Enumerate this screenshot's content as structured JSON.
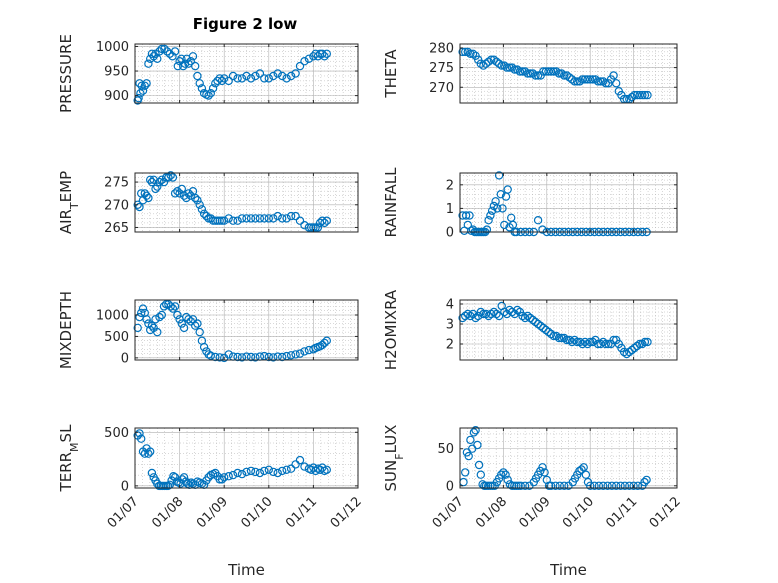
{
  "figure": {
    "title": "Figure 2 low"
  },
  "colors": {
    "marker": "#0072BD",
    "axis": "#262626",
    "grid": "#b0b0b0",
    "background": "#ffffff"
  },
  "chart_data": [
    {
      "type": "scatter",
      "ylabel": "PRESSURE",
      "title": "Figure 2 low",
      "xlabel": "",
      "ylim": [
        885,
        1005
      ],
      "yticks": [
        900,
        950,
        1000
      ],
      "yticklabels": [
        "900",
        "950",
        "1000"
      ],
      "xlim": [
        0,
        5
      ],
      "xticklabels": [],
      "grid": true,
      "x": [
        0.06,
        0.08,
        0.1,
        0.12,
        0.15,
        0.18,
        0.22,
        0.26,
        0.3,
        0.34,
        0.38,
        0.42,
        0.46,
        0.5,
        0.55,
        0.6,
        0.66,
        0.72,
        0.78,
        0.84,
        0.9,
        0.96,
        1.0,
        1.04,
        1.08,
        1.12,
        1.16,
        1.2,
        1.25,
        1.3,
        1.35,
        1.4,
        1.45,
        1.5,
        1.55,
        1.6,
        1.65,
        1.7,
        1.75,
        1.8,
        1.85,
        1.9,
        1.95,
        2.0,
        2.1,
        2.2,
        2.3,
        2.4,
        2.5,
        2.6,
        2.7,
        2.8,
        2.9,
        3.0,
        3.1,
        3.2,
        3.3,
        3.4,
        3.5,
        3.6,
        3.7,
        3.8,
        3.9,
        4.0,
        4.05,
        4.1,
        4.15,
        4.2,
        4.25,
        4.3
      ],
      "y": [
        890,
        895,
        925,
        905,
        920,
        910,
        920,
        925,
        965,
        975,
        985,
        980,
        985,
        975,
        990,
        995,
        995,
        990,
        985,
        980,
        990,
        960,
        970,
        975,
        960,
        965,
        975,
        965,
        970,
        980,
        960,
        940,
        925,
        915,
        905,
        902,
        900,
        905,
        915,
        925,
        930,
        935,
        930,
        935,
        930,
        940,
        935,
        935,
        940,
        935,
        940,
        945,
        935,
        935,
        940,
        945,
        940,
        935,
        940,
        945,
        960,
        970,
        975,
        980,
        985,
        980,
        985,
        985,
        980,
        985
      ]
    },
    {
      "type": "scatter",
      "ylabel": "THETA",
      "xlabel": "",
      "ylim": [
        266,
        281
      ],
      "yticks": [
        270,
        275,
        280
      ],
      "yticklabels": [
        "270",
        "275",
        "280"
      ],
      "xlim": [
        0,
        5
      ],
      "xticklabels": [],
      "grid": true,
      "x": [
        0.06,
        0.12,
        0.18,
        0.24,
        0.3,
        0.36,
        0.42,
        0.48,
        0.54,
        0.6,
        0.66,
        0.72,
        0.78,
        0.84,
        0.9,
        0.96,
        1.02,
        1.08,
        1.14,
        1.2,
        1.26,
        1.32,
        1.38,
        1.44,
        1.5,
        1.56,
        1.62,
        1.68,
        1.74,
        1.8,
        1.86,
        1.92,
        1.98,
        2.04,
        2.1,
        2.16,
        2.22,
        2.28,
        2.34,
        2.4,
        2.46,
        2.52,
        2.58,
        2.64,
        2.7,
        2.76,
        2.82,
        2.88,
        2.94,
        3.0,
        3.06,
        3.12,
        3.18,
        3.24,
        3.3,
        3.36,
        3.42,
        3.48,
        3.54,
        3.6,
        3.66,
        3.72,
        3.78,
        3.84,
        3.9,
        3.96,
        4.02,
        4.08,
        4.14,
        4.2,
        4.26,
        4.32
      ],
      "y": [
        279,
        279,
        279,
        278.5,
        278.5,
        278,
        277,
        276,
        275.5,
        276,
        276.5,
        277,
        277,
        276.5,
        276,
        275.5,
        275.5,
        275,
        275,
        275,
        274.5,
        274.5,
        274,
        274,
        274,
        273.5,
        273.5,
        273.5,
        273,
        273,
        273,
        274,
        274,
        274,
        274,
        274,
        274,
        273.5,
        273.5,
        273,
        273,
        272.5,
        272,
        271.5,
        271.5,
        271.5,
        272,
        272,
        272,
        272,
        272,
        272,
        271.5,
        271.5,
        271.5,
        271,
        271,
        272,
        273,
        271,
        269,
        268,
        267,
        267,
        267,
        267.5,
        268,
        268,
        268,
        268,
        268,
        268
      ]
    },
    {
      "type": "scatter",
      "ylabel": "AIR_TEMP",
      "xlabel": "",
      "ylim": [
        264,
        277
      ],
      "yticks": [
        265,
        270,
        275
      ],
      "yticklabels": [
        "265",
        "270",
        "275"
      ],
      "xlim": [
        0,
        5
      ],
      "xticklabels": [],
      "grid": true,
      "x": [
        0.06,
        0.1,
        0.14,
        0.18,
        0.22,
        0.26,
        0.3,
        0.34,
        0.38,
        0.42,
        0.46,
        0.5,
        0.55,
        0.6,
        0.65,
        0.7,
        0.75,
        0.8,
        0.85,
        0.9,
        0.95,
        1.0,
        1.05,
        1.1,
        1.15,
        1.2,
        1.25,
        1.3,
        1.35,
        1.4,
        1.45,
        1.5,
        1.55,
        1.6,
        1.65,
        1.7,
        1.75,
        1.8,
        1.85,
        1.9,
        1.95,
        2.0,
        2.1,
        2.2,
        2.3,
        2.4,
        2.5,
        2.6,
        2.7,
        2.8,
        2.9,
        3.0,
        3.1,
        3.2,
        3.3,
        3.4,
        3.5,
        3.6,
        3.7,
        3.8,
        3.9,
        3.95,
        4.0,
        4.05,
        4.1,
        4.15,
        4.2,
        4.25,
        4.3
      ],
      "y": [
        270,
        269.5,
        272.5,
        271,
        272.5,
        272,
        271.5,
        275.5,
        275,
        275.5,
        273.5,
        274,
        275,
        275.5,
        275,
        276,
        276,
        276.5,
        276,
        272.5,
        273,
        272.5,
        273.5,
        272,
        271.5,
        272.5,
        272,
        273,
        271.5,
        271,
        270,
        269,
        268,
        267.5,
        267,
        267,
        266.5,
        266.5,
        266.5,
        266.5,
        266.5,
        266.5,
        267,
        266.5,
        266.5,
        267,
        267,
        267,
        267,
        267,
        267,
        267,
        267,
        267.5,
        267,
        267,
        267.5,
        267.5,
        266.5,
        265.5,
        265,
        265,
        265,
        265,
        265,
        266,
        266.5,
        266,
        266.5
      ]
    },
    {
      "type": "scatter",
      "ylabel": "RAINFALL",
      "xlabel": "",
      "ylim": [
        0,
        2.5
      ],
      "yticks": [
        0,
        1,
        2
      ],
      "yticklabels": [
        "0",
        "1",
        "2"
      ],
      "xlim": [
        0,
        5
      ],
      "xticklabels": [],
      "grid": true,
      "x": [
        0.06,
        0.1,
        0.14,
        0.18,
        0.22,
        0.26,
        0.3,
        0.34,
        0.38,
        0.42,
        0.46,
        0.5,
        0.54,
        0.58,
        0.62,
        0.66,
        0.7,
        0.74,
        0.78,
        0.82,
        0.86,
        0.9,
        0.94,
        0.98,
        1.02,
        1.06,
        1.1,
        1.14,
        1.18,
        1.22,
        1.26,
        1.3,
        1.4,
        1.5,
        1.6,
        1.7,
        1.8,
        1.9,
        2.0,
        2.1,
        2.2,
        2.3,
        2.4,
        2.5,
        2.6,
        2.7,
        2.8,
        2.9,
        3.0,
        3.1,
        3.2,
        3.3,
        3.4,
        3.5,
        3.6,
        3.7,
        3.8,
        3.9,
        4.0,
        4.1,
        4.2,
        4.3
      ],
      "y": [
        0.7,
        0.05,
        0.7,
        0.3,
        0.7,
        0.05,
        0.1,
        0,
        0,
        0,
        0,
        0,
        0,
        0,
        0.1,
        0.5,
        0.7,
        0.9,
        1.1,
        1.3,
        1.0,
        2.4,
        1.6,
        1.0,
        0.3,
        1.5,
        1.8,
        0.2,
        0.6,
        0.3,
        0,
        0,
        0,
        0,
        0,
        0,
        0.5,
        0.1,
        0,
        0,
        0,
        0,
        0,
        0,
        0,
        0,
        0,
        0,
        0,
        0,
        0,
        0,
        0,
        0,
        0,
        0,
        0,
        0,
        0,
        0,
        0,
        0
      ]
    },
    {
      "type": "scatter",
      "ylabel": "MIXDEPTH",
      "xlabel": "",
      "ylim": [
        -50,
        1350
      ],
      "yticks": [
        0,
        500,
        1000
      ],
      "yticklabels": [
        "0",
        "500",
        "1000"
      ],
      "xlim": [
        0,
        5
      ],
      "xticklabels": [],
      "grid": true,
      "x": [
        0.06,
        0.1,
        0.14,
        0.18,
        0.22,
        0.26,
        0.3,
        0.34,
        0.38,
        0.42,
        0.46,
        0.5,
        0.55,
        0.6,
        0.65,
        0.7,
        0.75,
        0.8,
        0.85,
        0.9,
        0.95,
        1.0,
        1.05,
        1.1,
        1.15,
        1.2,
        1.25,
        1.3,
        1.35,
        1.4,
        1.45,
        1.5,
        1.55,
        1.6,
        1.65,
        1.7,
        1.8,
        1.9,
        2.0,
        2.1,
        2.2,
        2.3,
        2.4,
        2.5,
        2.6,
        2.7,
        2.8,
        2.9,
        3.0,
        3.1,
        3.2,
        3.3,
        3.4,
        3.5,
        3.6,
        3.7,
        3.8,
        3.9,
        4.0,
        4.05,
        4.1,
        4.15,
        4.2,
        4.25,
        4.3
      ],
      "y": [
        700,
        950,
        1050,
        1150,
        1050,
        900,
        800,
        650,
        750,
        700,
        900,
        600,
        950,
        1000,
        1200,
        1250,
        1250,
        1200,
        1150,
        1200,
        1000,
        900,
        800,
        700,
        950,
        900,
        850,
        900,
        750,
        800,
        600,
        400,
        250,
        150,
        80,
        50,
        20,
        10,
        0,
        80,
        30,
        20,
        10,
        30,
        20,
        10,
        30,
        40,
        20,
        10,
        30,
        20,
        40,
        60,
        80,
        100,
        150,
        180,
        200,
        230,
        250,
        270,
        300,
        350,
        400
      ]
    },
    {
      "type": "scatter",
      "ylabel": "H2OMIXRA",
      "xlabel": "",
      "ylim": [
        1.2,
        4.2
      ],
      "yticks": [
        2,
        3,
        4
      ],
      "yticklabels": [
        "2",
        "3",
        "4"
      ],
      "xlim": [
        0,
        5
      ],
      "xticklabels": [],
      "grid": true,
      "x": [
        0.06,
        0.12,
        0.18,
        0.24,
        0.3,
        0.36,
        0.42,
        0.48,
        0.54,
        0.6,
        0.66,
        0.72,
        0.78,
        0.84,
        0.9,
        0.96,
        1.02,
        1.08,
        1.14,
        1.2,
        1.26,
        1.32,
        1.38,
        1.44,
        1.5,
        1.56,
        1.62,
        1.68,
        1.74,
        1.8,
        1.86,
        1.92,
        1.98,
        2.04,
        2.1,
        2.16,
        2.22,
        2.28,
        2.34,
        2.4,
        2.46,
        2.52,
        2.58,
        2.64,
        2.7,
        2.76,
        2.82,
        2.88,
        2.94,
        3.0,
        3.06,
        3.12,
        3.18,
        3.24,
        3.3,
        3.36,
        3.42,
        3.48,
        3.54,
        3.6,
        3.66,
        3.72,
        3.78,
        3.84,
        3.9,
        3.96,
        4.02,
        4.08,
        4.14,
        4.2,
        4.26,
        4.32
      ],
      "y": [
        3.3,
        3.4,
        3.5,
        3.4,
        3.5,
        3.3,
        3.4,
        3.6,
        3.5,
        3.5,
        3.4,
        3.5,
        3.6,
        3.5,
        3.4,
        3.9,
        3.6,
        3.5,
        3.7,
        3.6,
        3.5,
        3.7,
        3.6,
        3.4,
        3.3,
        3.4,
        3.3,
        3.2,
        3.1,
        3.0,
        2.9,
        2.8,
        2.7,
        2.6,
        2.5,
        2.4,
        2.4,
        2.3,
        2.3,
        2.3,
        2.2,
        2.2,
        2.1,
        2.2,
        2.1,
        2.1,
        2.0,
        2.1,
        2.0,
        2.1,
        2.1,
        2.2,
        2.0,
        2.0,
        2.1,
        2.0,
        2.0,
        2.0,
        2.2,
        2.2,
        2.0,
        1.8,
        1.6,
        1.5,
        1.6,
        1.7,
        1.8,
        1.9,
        2.0,
        2.0,
        2.1,
        2.1
      ]
    },
    {
      "type": "scatter",
      "ylabel": "TERR_MSL",
      "xlabel": "Time",
      "ylim": [
        -20,
        540
      ],
      "yticks": [
        0,
        500
      ],
      "yticklabels": [
        "0",
        "500"
      ],
      "xlim": [
        0,
        5
      ],
      "xticklabels": [
        "01/07",
        "01/08",
        "01/09",
        "01/10",
        "01/11",
        "01/12"
      ],
      "grid": true,
      "x": [
        0.06,
        0.1,
        0.14,
        0.18,
        0.22,
        0.26,
        0.3,
        0.34,
        0.38,
        0.42,
        0.46,
        0.5,
        0.54,
        0.58,
        0.62,
        0.66,
        0.7,
        0.74,
        0.78,
        0.82,
        0.86,
        0.9,
        0.94,
        0.98,
        1.02,
        1.06,
        1.1,
        1.14,
        1.18,
        1.22,
        1.26,
        1.3,
        1.35,
        1.4,
        1.45,
        1.5,
        1.55,
        1.6,
        1.65,
        1.7,
        1.75,
        1.8,
        1.85,
        1.9,
        1.95,
        2.0,
        2.1,
        2.2,
        2.3,
        2.4,
        2.5,
        2.6,
        2.7,
        2.8,
        2.9,
        3.0,
        3.1,
        3.2,
        3.3,
        3.4,
        3.5,
        3.6,
        3.7,
        3.8,
        3.9,
        3.95,
        4.0,
        4.05,
        4.1,
        4.15,
        4.2,
        4.25,
        4.3
      ],
      "y": [
        470,
        490,
        440,
        320,
        300,
        350,
        300,
        320,
        120,
        80,
        50,
        20,
        0,
        0,
        0,
        0,
        0,
        0,
        10,
        50,
        90,
        80,
        40,
        30,
        20,
        60,
        80,
        40,
        20,
        10,
        30,
        20,
        10,
        40,
        30,
        20,
        10,
        50,
        80,
        100,
        110,
        120,
        90,
        60,
        60,
        80,
        90,
        100,
        120,
        110,
        130,
        140,
        130,
        120,
        140,
        150,
        130,
        120,
        140,
        150,
        160,
        200,
        240,
        180,
        160,
        150,
        170,
        140,
        160,
        150,
        170,
        140,
        150
      ]
    },
    {
      "type": "scatter",
      "ylabel": "SUN_FLUX",
      "xlabel": "Time",
      "ylim": [
        -3,
        78
      ],
      "yticks": [
        0,
        50
      ],
      "yticklabels": [
        "0",
        "50"
      ],
      "xlim": [
        0,
        5
      ],
      "xticklabels": [
        "01/07",
        "01/08",
        "01/09",
        "01/10",
        "01/11",
        "01/12"
      ],
      "grid": true,
      "x": [
        0.08,
        0.12,
        0.16,
        0.2,
        0.24,
        0.28,
        0.32,
        0.36,
        0.4,
        0.44,
        0.48,
        0.52,
        0.56,
        0.6,
        0.65,
        0.7,
        0.75,
        0.8,
        0.85,
        0.9,
        0.95,
        1.0,
        1.05,
        1.1,
        1.15,
        1.2,
        1.25,
        1.3,
        1.35,
        1.4,
        1.5,
        1.6,
        1.7,
        1.75,
        1.8,
        1.85,
        1.9,
        1.95,
        2.0,
        2.05,
        2.1,
        2.2,
        2.3,
        2.4,
        2.5,
        2.6,
        2.65,
        2.7,
        2.75,
        2.8,
        2.85,
        2.9,
        2.95,
        3.0,
        3.1,
        3.2,
        3.3,
        3.4,
        3.5,
        3.6,
        3.7,
        3.8,
        3.9,
        4.0,
        4.1,
        4.2,
        4.25,
        4.3
      ],
      "y": [
        5,
        18,
        45,
        40,
        62,
        50,
        72,
        75,
        55,
        28,
        15,
        2,
        0,
        0,
        0,
        0,
        0,
        0,
        5,
        10,
        15,
        18,
        15,
        8,
        2,
        0,
        0,
        0,
        0,
        0,
        0,
        0,
        5,
        10,
        15,
        20,
        25,
        18,
        8,
        0,
        0,
        0,
        0,
        0,
        0,
        5,
        10,
        15,
        20,
        22,
        25,
        15,
        5,
        0,
        0,
        0,
        0,
        0,
        0,
        0,
        0,
        0,
        0,
        0,
        0,
        0,
        5,
        8
      ]
    }
  ]
}
